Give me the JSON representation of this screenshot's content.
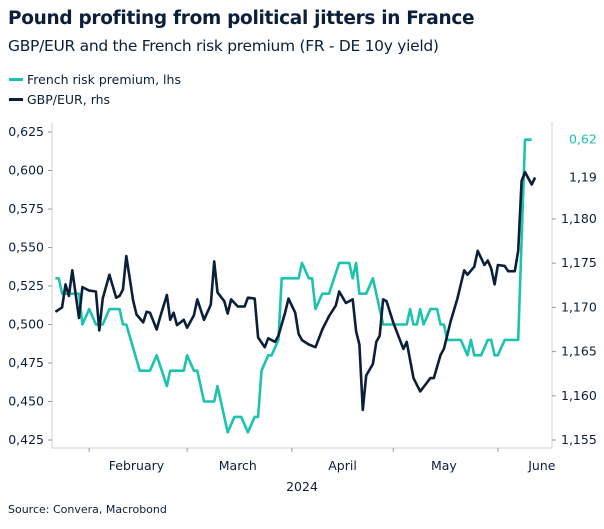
{
  "chart_data": {
    "type": "line",
    "title": "Pound profiting from political jitters in France",
    "subtitle": "GBP/EUR and the French risk premium (FR - DE 10y yield)",
    "source": "Source: Convera, Macrobond",
    "x_type": "date",
    "xlim": [
      "2024-01-21",
      "2024-06-17"
    ],
    "x_ticks": [
      "2024-02-01",
      "2024-03-01",
      "2024-04-01",
      "2024-05-01",
      "2024-06-01"
    ],
    "x_tick_labels": [
      {
        "label": "February",
        "at": "2024-02-15"
      },
      {
        "label": "March",
        "at": "2024-03-16"
      },
      {
        "label": "April",
        "at": "2024-04-16"
      },
      {
        "label": "May",
        "at": "2024-05-16"
      },
      {
        "label": "June",
        "at": "2024-06-14"
      }
    ],
    "xlabel": "2024",
    "left_axis": {
      "ylim": [
        0.425,
        0.625
      ],
      "ticks": [
        0.425,
        0.45,
        0.475,
        0.5,
        0.525,
        0.55,
        0.575,
        0.6,
        0.625
      ],
      "tick_labels": [
        "0,425",
        "0,450",
        "0,475",
        "0,500",
        "0,525",
        "0,550",
        "0,575",
        "0,600",
        "0,625"
      ]
    },
    "right_axis": {
      "ylim": [
        1.155,
        1.1865
      ],
      "ticks": [
        1.155,
        1.16,
        1.165,
        1.17,
        1.175,
        1.18
      ],
      "tick_labels": [
        "1,155",
        "1,160",
        "1,165",
        "1,170",
        "1,175",
        "1,180"
      ]
    },
    "legend_placement": "top-left",
    "grid": false,
    "series": [
      {
        "name": "French risk premium, lhs",
        "axis": "left",
        "color": "#1cc3ae",
        "last_value_label": "0,62",
        "points": [
          [
            "2024-01-22",
            0.53
          ],
          [
            "2024-01-23",
            0.53
          ],
          [
            "2024-01-24",
            0.52
          ],
          [
            "2024-01-29",
            0.52
          ],
          [
            "2024-01-30",
            0.5
          ],
          [
            "2024-02-01",
            0.51
          ],
          [
            "2024-02-03",
            0.5
          ],
          [
            "2024-02-05",
            0.5
          ],
          [
            "2024-02-07",
            0.51
          ],
          [
            "2024-02-10",
            0.51
          ],
          [
            "2024-02-11",
            0.5
          ],
          [
            "2024-02-12",
            0.5
          ],
          [
            "2024-02-16",
            0.47
          ],
          [
            "2024-02-19",
            0.47
          ],
          [
            "2024-02-21",
            0.48
          ],
          [
            "2024-02-24",
            0.46
          ],
          [
            "2024-02-25",
            0.47
          ],
          [
            "2024-02-29",
            0.47
          ],
          [
            "2024-03-01",
            0.48
          ],
          [
            "2024-03-03",
            0.47
          ],
          [
            "2024-03-04",
            0.47
          ],
          [
            "2024-03-06",
            0.45
          ],
          [
            "2024-03-09",
            0.45
          ],
          [
            "2024-03-10",
            0.46
          ],
          [
            "2024-03-11",
            0.45
          ],
          [
            "2024-03-13",
            0.43
          ],
          [
            "2024-03-15",
            0.44
          ],
          [
            "2024-03-17",
            0.44
          ],
          [
            "2024-03-19",
            0.43
          ],
          [
            "2024-03-21",
            0.44
          ],
          [
            "2024-03-22",
            0.44
          ],
          [
            "2024-03-23",
            0.47
          ],
          [
            "2024-03-25",
            0.48
          ],
          [
            "2024-03-26",
            0.48
          ],
          [
            "2024-03-28",
            0.49
          ],
          [
            "2024-03-29",
            0.53
          ],
          [
            "2024-04-03",
            0.53
          ],
          [
            "2024-04-04",
            0.54
          ],
          [
            "2024-04-06",
            0.53
          ],
          [
            "2024-04-07",
            0.53
          ],
          [
            "2024-04-08",
            0.51
          ],
          [
            "2024-04-10",
            0.52
          ],
          [
            "2024-04-12",
            0.52
          ],
          [
            "2024-04-15",
            0.54
          ],
          [
            "2024-04-18",
            0.54
          ],
          [
            "2024-04-19",
            0.53
          ],
          [
            "2024-04-20",
            0.54
          ],
          [
            "2024-04-21",
            0.52
          ],
          [
            "2024-04-23",
            0.52
          ],
          [
            "2024-04-25",
            0.53
          ],
          [
            "2024-04-27",
            0.51
          ],
          [
            "2024-04-28",
            0.5
          ],
          [
            "2024-05-05",
            0.5
          ],
          [
            "2024-05-06",
            0.51
          ],
          [
            "2024-05-07",
            0.5
          ],
          [
            "2024-05-08",
            0.5
          ],
          [
            "2024-05-09",
            0.51
          ],
          [
            "2024-05-10",
            0.5
          ],
          [
            "2024-05-12",
            0.51
          ],
          [
            "2024-05-14",
            0.51
          ],
          [
            "2024-05-15",
            0.5
          ],
          [
            "2024-05-16",
            0.5
          ],
          [
            "2024-05-17",
            0.49
          ],
          [
            "2024-05-21",
            0.49
          ],
          [
            "2024-05-23",
            0.48
          ],
          [
            "2024-05-24",
            0.49
          ],
          [
            "2024-05-25",
            0.48
          ],
          [
            "2024-05-27",
            0.48
          ],
          [
            "2024-05-29",
            0.49
          ],
          [
            "2024-05-30",
            0.49
          ],
          [
            "2024-05-31",
            0.48
          ],
          [
            "2024-06-01",
            0.48
          ],
          [
            "2024-06-03",
            0.49
          ],
          [
            "2024-06-07",
            0.49
          ],
          [
            "2024-06-09",
            0.62
          ],
          [
            "2024-06-11",
            0.62
          ]
        ]
      },
      {
        "name": "GBP/EUR, rhs",
        "axis": "right",
        "color": "#0b1f3a",
        "last_value_label": "1,19",
        "points": [
          [
            "2024-01-22",
            1.1695
          ],
          [
            "2024-01-24",
            1.17
          ],
          [
            "2024-01-25",
            1.1726
          ],
          [
            "2024-01-26",
            1.1713
          ],
          [
            "2024-01-27",
            1.1742
          ],
          [
            "2024-01-29",
            1.1688
          ],
          [
            "2024-01-30",
            1.1723
          ],
          [
            "2024-02-01",
            1.1719
          ],
          [
            "2024-02-03",
            1.1718
          ],
          [
            "2024-02-04",
            1.1674
          ],
          [
            "2024-02-05",
            1.171
          ],
          [
            "2024-02-07",
            1.1737
          ],
          [
            "2024-02-09",
            1.1711
          ],
          [
            "2024-02-10",
            1.1713
          ],
          [
            "2024-02-11",
            1.172
          ],
          [
            "2024-02-12",
            1.1758
          ],
          [
            "2024-02-14",
            1.1708
          ],
          [
            "2024-02-15",
            1.1692
          ],
          [
            "2024-02-17",
            1.1683
          ],
          [
            "2024-02-18",
            1.1695
          ],
          [
            "2024-02-19",
            1.1694
          ],
          [
            "2024-02-21",
            1.1675
          ],
          [
            "2024-02-22",
            1.1689
          ],
          [
            "2024-02-24",
            1.1714
          ],
          [
            "2024-02-25",
            1.1686
          ],
          [
            "2024-02-26",
            1.1694
          ],
          [
            "2024-02-27",
            1.168
          ],
          [
            "2024-02-29",
            1.1686
          ],
          [
            "2024-03-01",
            1.1677
          ],
          [
            "2024-03-03",
            1.1691
          ],
          [
            "2024-03-04",
            1.1709
          ],
          [
            "2024-03-06",
            1.1686
          ],
          [
            "2024-03-08",
            1.1703
          ],
          [
            "2024-03-09",
            1.1752
          ],
          [
            "2024-03-10",
            1.1717
          ],
          [
            "2024-03-12",
            1.1707
          ],
          [
            "2024-03-13",
            1.1693
          ],
          [
            "2024-03-14",
            1.1709
          ],
          [
            "2024-03-16",
            1.1701
          ],
          [
            "2024-03-18",
            1.1701
          ],
          [
            "2024-03-19",
            1.1711
          ],
          [
            "2024-03-21",
            1.171
          ],
          [
            "2024-03-22",
            1.1666
          ],
          [
            "2024-03-24",
            1.1655
          ],
          [
            "2024-03-25",
            1.1665
          ],
          [
            "2024-03-27",
            1.1661
          ],
          [
            "2024-03-28",
            1.1668
          ],
          [
            "2024-03-30",
            1.1694
          ],
          [
            "2024-03-31",
            1.171
          ],
          [
            "2024-04-02",
            1.1694
          ],
          [
            "2024-04-03",
            1.167
          ],
          [
            "2024-04-04",
            1.1663
          ],
          [
            "2024-04-06",
            1.1658
          ],
          [
            "2024-04-08",
            1.1655
          ],
          [
            "2024-04-10",
            1.1675
          ],
          [
            "2024-04-12",
            1.169
          ],
          [
            "2024-04-14",
            1.1702
          ],
          [
            "2024-04-15",
            1.1718
          ],
          [
            "2024-04-17",
            1.1705
          ],
          [
            "2024-04-19",
            1.1709
          ],
          [
            "2024-04-20",
            1.1673
          ],
          [
            "2024-04-21",
            1.1658
          ],
          [
            "2024-04-22",
            1.1584
          ],
          [
            "2024-04-23",
            1.1623
          ],
          [
            "2024-04-25",
            1.1636
          ],
          [
            "2024-04-26",
            1.1661
          ],
          [
            "2024-04-27",
            1.1668
          ],
          [
            "2024-04-28",
            1.1709
          ],
          [
            "2024-04-29",
            1.1707
          ],
          [
            "2024-05-01",
            1.1683
          ],
          [
            "2024-05-02",
            1.1673
          ],
          [
            "2024-05-04",
            1.1653
          ],
          [
            "2024-05-05",
            1.1661
          ],
          [
            "2024-05-07",
            1.162
          ],
          [
            "2024-05-09",
            1.1605
          ],
          [
            "2024-05-10",
            1.161
          ],
          [
            "2024-05-12",
            1.162
          ],
          [
            "2024-05-13",
            1.162
          ],
          [
            "2024-05-15",
            1.1646
          ],
          [
            "2024-05-16",
            1.1653
          ],
          [
            "2024-05-18",
            1.1684
          ],
          [
            "2024-05-20",
            1.171
          ],
          [
            "2024-05-22",
            1.1742
          ],
          [
            "2024-05-23",
            1.1737
          ],
          [
            "2024-05-25",
            1.1746
          ],
          [
            "2024-05-26",
            1.1764
          ],
          [
            "2024-05-28",
            1.1748
          ],
          [
            "2024-05-29",
            1.1753
          ],
          [
            "2024-05-30",
            1.1744
          ],
          [
            "2024-05-31",
            1.1726
          ],
          [
            "2024-06-01",
            1.1748
          ],
          [
            "2024-06-03",
            1.1747
          ],
          [
            "2024-06-04",
            1.1741
          ],
          [
            "2024-06-06",
            1.1741
          ],
          [
            "2024-06-07",
            1.1764
          ],
          [
            "2024-06-08",
            1.1843
          ],
          [
            "2024-06-09",
            1.1853
          ],
          [
            "2024-06-11",
            1.1839
          ],
          [
            "2024-06-12",
            1.1847
          ]
        ]
      }
    ]
  }
}
